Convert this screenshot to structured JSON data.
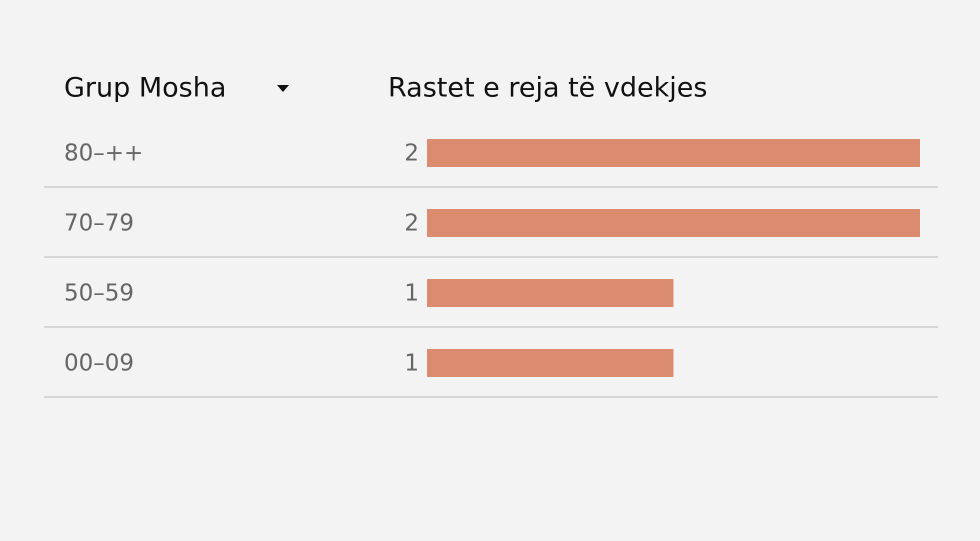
{
  "chart_data": {
    "type": "bar",
    "category_header": "Grup Mosha",
    "value_header": "Rastet e reja të vdekjes",
    "categories": [
      "80–++",
      "70–79",
      "50–59",
      "00–09"
    ],
    "values": [
      2,
      2,
      1,
      1
    ],
    "color": "#db8c6e"
  }
}
